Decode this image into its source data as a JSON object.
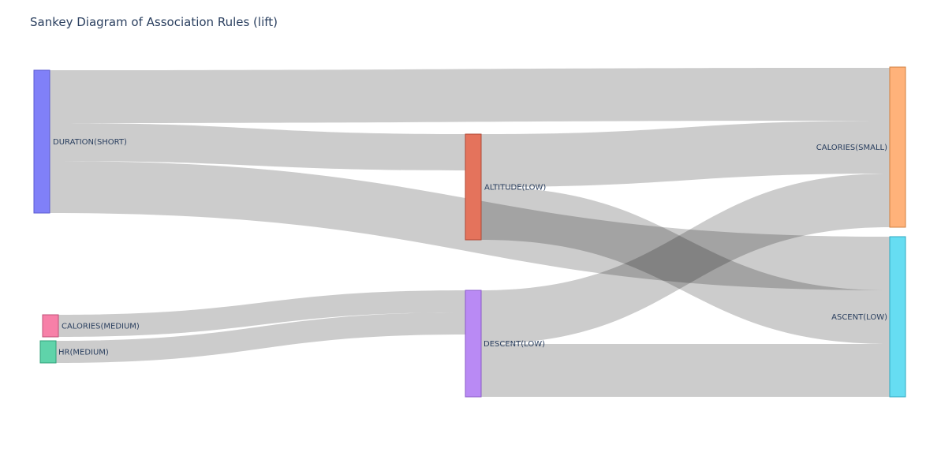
{
  "title": "Sankey Diagram of Association Rules (lift)",
  "nodes": [
    {
      "id": "duration_short",
      "label": "DURATION(SHORT)",
      "color": "#8080f8",
      "stroke": "#5a5ad0"
    },
    {
      "id": "calories_medium",
      "label": "CALORIES(MEDIUM)",
      "color": "#f780a8",
      "stroke": "#c05078"
    },
    {
      "id": "hr_medium",
      "label": "HR(MEDIUM)",
      "color": "#5fd3aa",
      "stroke": "#30a07a"
    },
    {
      "id": "altitude_low",
      "label": "ALTITUDE(LOW)",
      "color": "#e4735c",
      "stroke": "#b04a36"
    },
    {
      "id": "descent_low",
      "label": "DESCENT(LOW)",
      "color": "#b98af4",
      "stroke": "#8a5cc8"
    },
    {
      "id": "calories_small",
      "label": "CALORIES(SMALL)",
      "color": "#ffb27a",
      "stroke": "#d08040"
    },
    {
      "id": "ascent_low",
      "label": "ASCENT(LOW)",
      "color": "#66ddf2",
      "stroke": "#30a8c0"
    }
  ],
  "links": [
    {
      "source": "duration_short",
      "target": "calories_small",
      "value": 1.0
    },
    {
      "source": "duration_short",
      "target": "altitude_low",
      "value": 0.7
    },
    {
      "source": "duration_short",
      "target": "ascent_low",
      "value": 1.0
    },
    {
      "source": "calories_medium",
      "target": "descent_low",
      "value": 0.45
    },
    {
      "source": "hr_medium",
      "target": "descent_low",
      "value": 0.45
    },
    {
      "source": "altitude_low",
      "target": "calories_small",
      "value": 1.0
    },
    {
      "source": "altitude_low",
      "target": "ascent_low",
      "value": 1.0
    },
    {
      "source": "descent_low",
      "target": "calories_small",
      "value": 1.0
    },
    {
      "source": "descent_low",
      "target": "ascent_low",
      "value": 1.0
    }
  ]
}
